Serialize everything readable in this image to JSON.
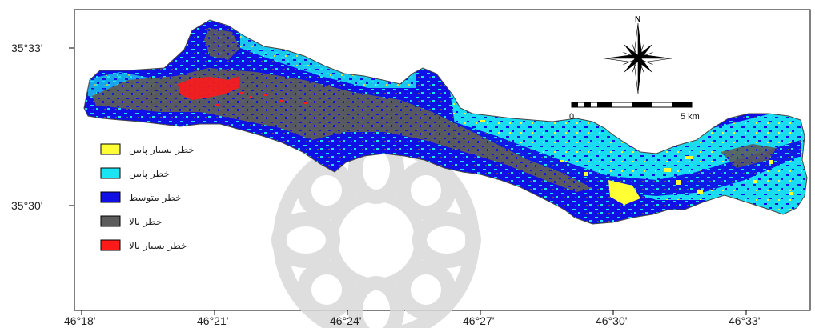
{
  "map": {
    "latitude_labels": [
      "35°33'",
      "35°30'"
    ],
    "longitude_labels": [
      "46°18'",
      "46°21'",
      "46°24'",
      "46°27'",
      "46°30'",
      "46°33'"
    ],
    "north_arrow": {
      "label": "N",
      "icon": "compass-rose-icon"
    },
    "scale_bar": {
      "start_label": "0",
      "end_label": "5 km"
    },
    "watermark": {
      "icon": "rosette-watermark-icon",
      "color": "#d9d9d9"
    },
    "legend": [
      {
        "label": "خطر بسیار پایین",
        "color": "#ffff33"
      },
      {
        "label": "خطر پایین",
        "color": "#19e6f2"
      },
      {
        "label": "خطر متوسط",
        "color": "#1010e6"
      },
      {
        "label": "خطر بالا",
        "color": "#5c5c5c"
      },
      {
        "label": "خطر بسیار بالا",
        "color": "#ff1a1a"
      }
    ]
  }
}
